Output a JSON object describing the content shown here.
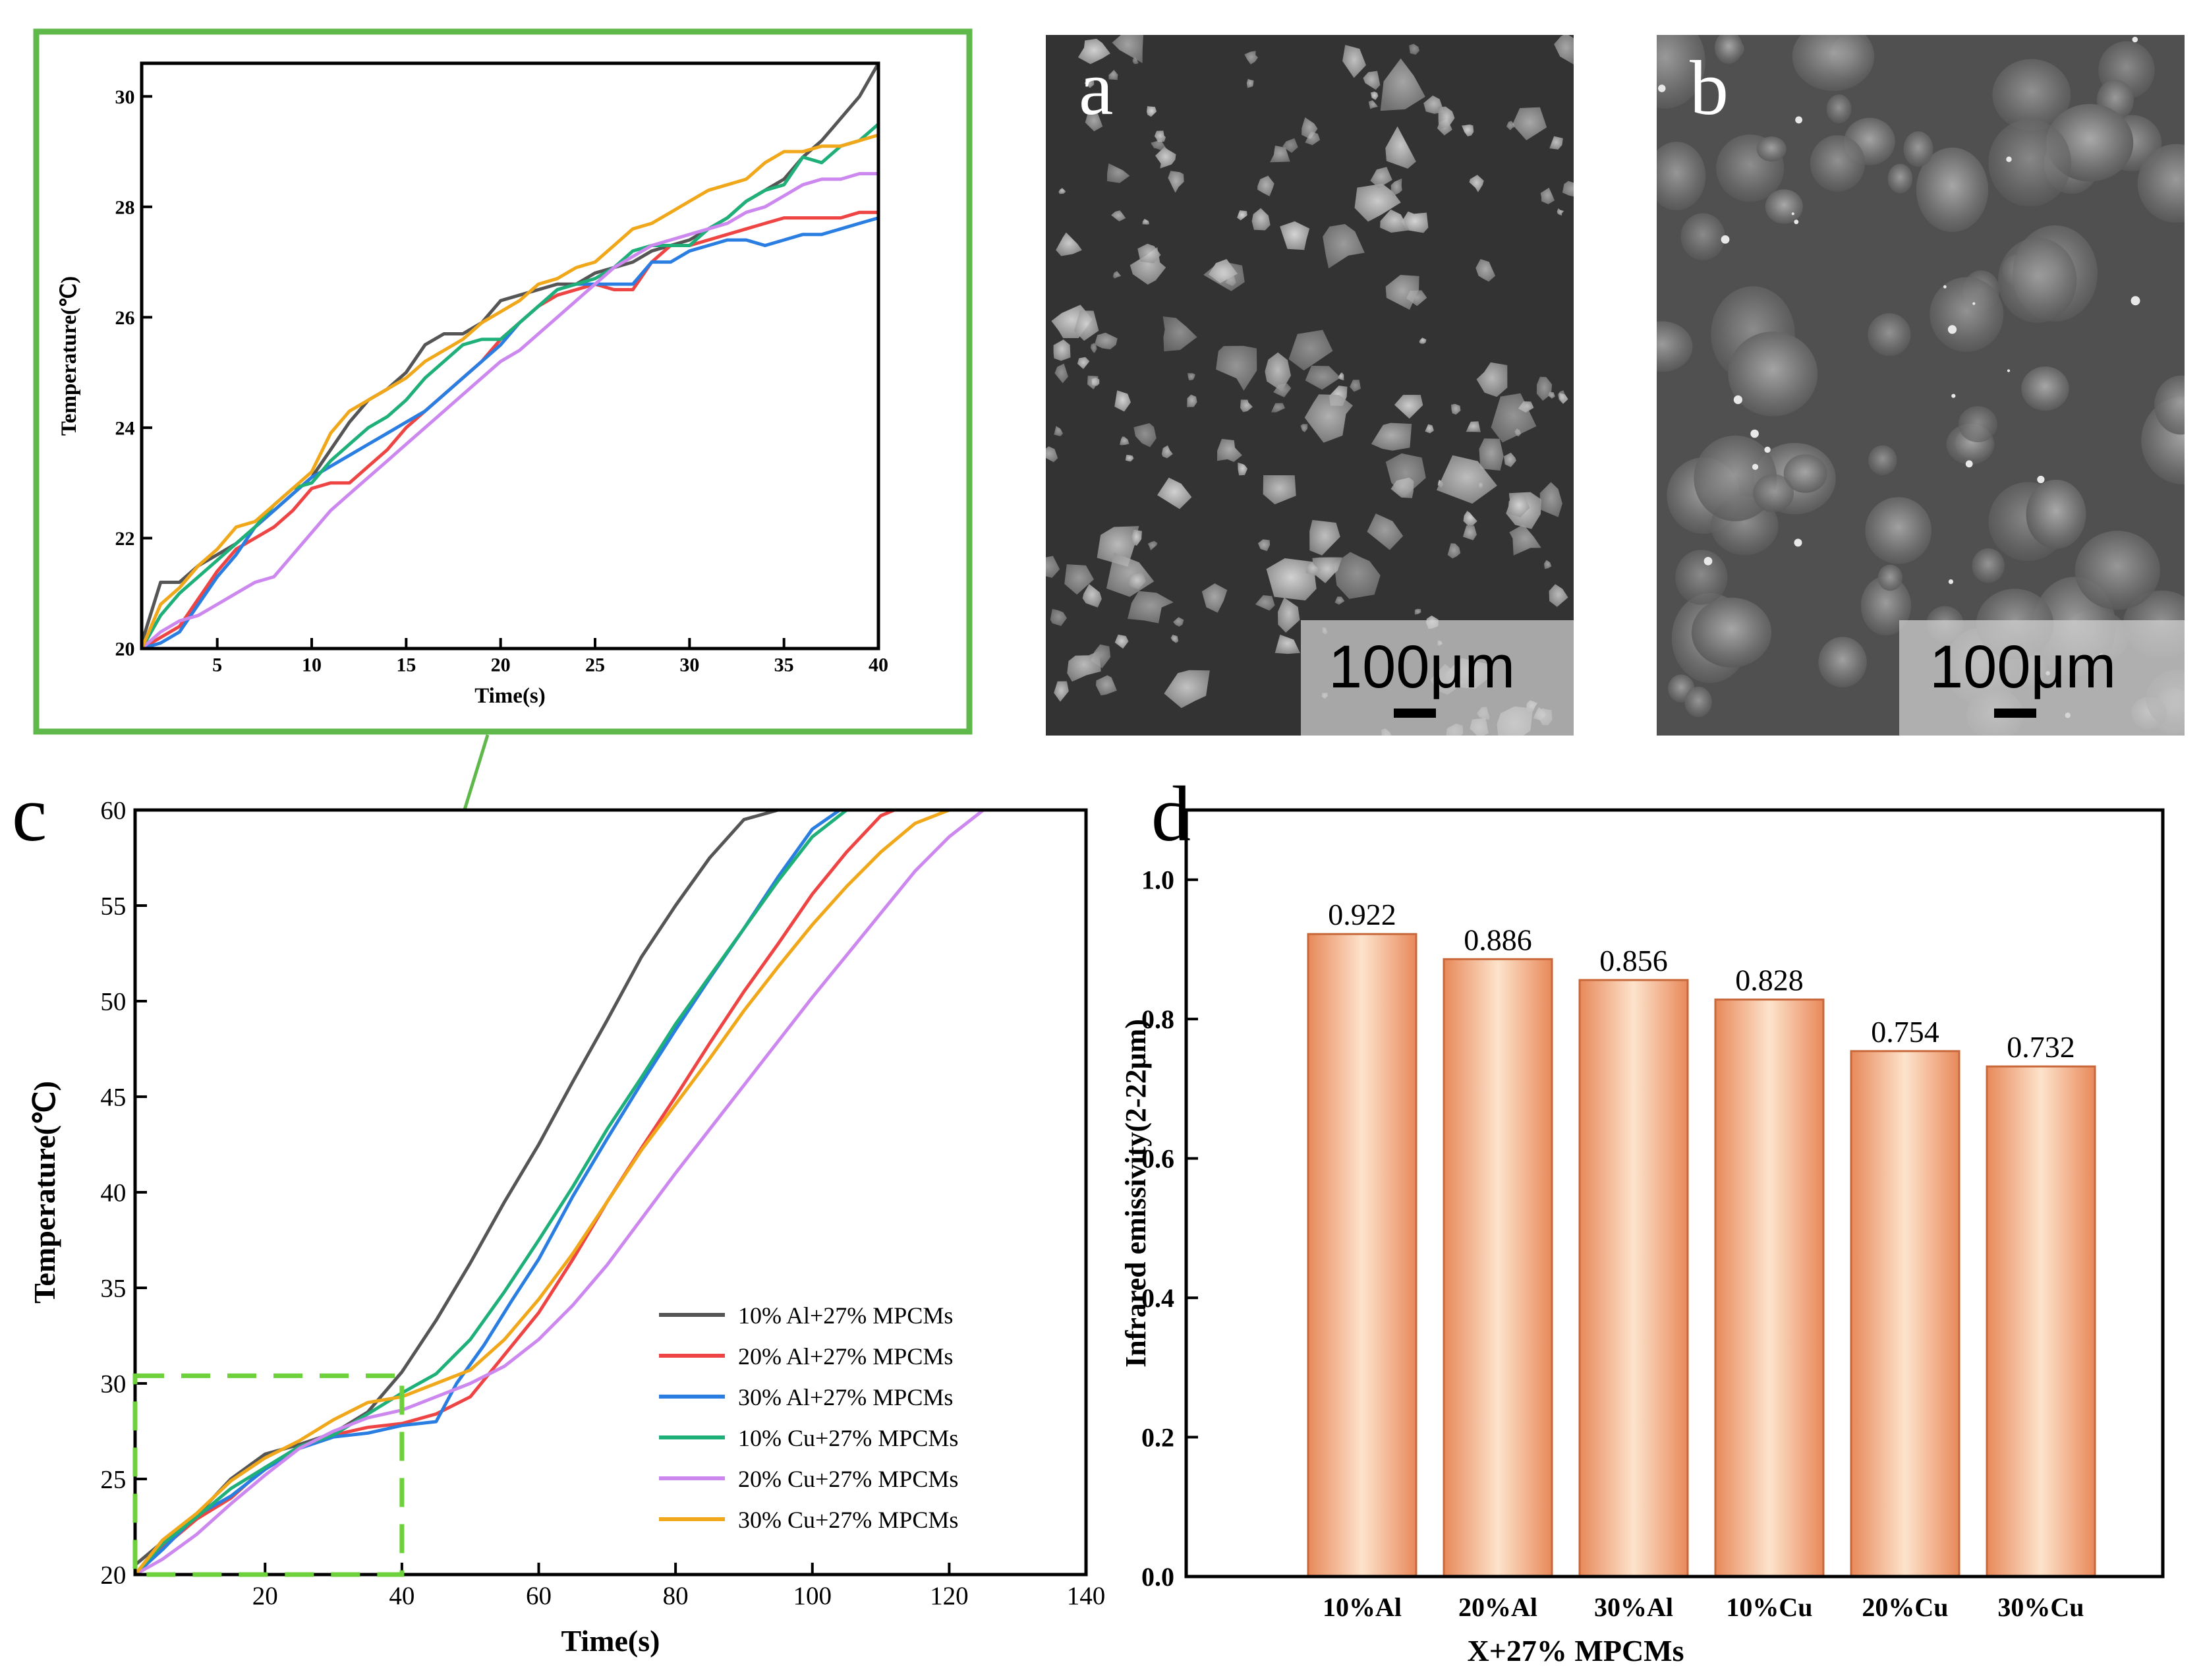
{
  "panels": {
    "a_label": "a",
    "b_label": "b",
    "c_label": "c",
    "d_label": "d",
    "scale_bar_text": "100μm"
  },
  "colors": {
    "zoom_box": "#5fb84a",
    "zoom_dash": "#6cd13a",
    "bar_fill_light": "#fde3cc",
    "bar_fill_dark": "#e8895a"
  },
  "chart_data": [
    {
      "id": "inset",
      "type": "line",
      "title": "",
      "xlabel": "Time(s)",
      "ylabel": "Temperature(℃)",
      "xlim": [
        1,
        40
      ],
      "ylim": [
        20,
        30.6
      ],
      "xticks": [
        5,
        10,
        15,
        20,
        25,
        30,
        35,
        40
      ],
      "yticks": [
        20,
        22,
        24,
        26,
        28,
        30
      ],
      "series": [
        {
          "name": "10% Al+27% MPCMs",
          "color": "#555555",
          "x": [
            1,
            2,
            3,
            4,
            5,
            6,
            7,
            8,
            9,
            10,
            11,
            12,
            13,
            14,
            15,
            16,
            17,
            18,
            19,
            20,
            21,
            22,
            23,
            24,
            25,
            26,
            27,
            28,
            29,
            30,
            31,
            32,
            33,
            34,
            35,
            36,
            37,
            38,
            39,
            40
          ],
          "y": [
            20.1,
            21.2,
            21.2,
            21.5,
            21.7,
            21.9,
            22.2,
            22.5,
            22.8,
            23.1,
            23.6,
            24.1,
            24.5,
            24.7,
            25.0,
            25.5,
            25.7,
            25.7,
            25.9,
            26.3,
            26.4,
            26.5,
            26.6,
            26.6,
            26.8,
            26.9,
            27.0,
            27.2,
            27.3,
            27.4,
            27.6,
            27.8,
            28.1,
            28.3,
            28.5,
            28.9,
            29.2,
            29.6,
            30.0,
            30.6
          ]
        },
        {
          "name": "20% Al+27% MPCMs",
          "color": "#ee4444",
          "x": [
            1,
            2,
            3,
            4,
            5,
            6,
            7,
            8,
            9,
            10,
            11,
            12,
            13,
            14,
            15,
            16,
            17,
            18,
            19,
            20,
            21,
            22,
            23,
            24,
            25,
            26,
            27,
            28,
            29,
            30,
            31,
            32,
            33,
            34,
            35,
            36,
            37,
            38,
            39,
            40
          ],
          "y": [
            20.0,
            20.2,
            20.4,
            20.9,
            21.4,
            21.8,
            22.0,
            22.2,
            22.5,
            22.9,
            23.0,
            23.0,
            23.3,
            23.6,
            24.0,
            24.3,
            24.6,
            24.9,
            25.2,
            25.6,
            25.9,
            26.2,
            26.4,
            26.5,
            26.6,
            26.5,
            26.5,
            27.0,
            27.3,
            27.3,
            27.4,
            27.5,
            27.6,
            27.7,
            27.8,
            27.8,
            27.8,
            27.8,
            27.9,
            27.9
          ]
        },
        {
          "name": "30% Al+27% MPCMs",
          "color": "#2a7de1",
          "x": [
            1,
            2,
            3,
            4,
            5,
            6,
            7,
            8,
            9,
            10,
            11,
            12,
            13,
            14,
            15,
            16,
            17,
            18,
            19,
            20,
            21,
            22,
            23,
            24,
            25,
            26,
            27,
            28,
            29,
            30,
            31,
            32,
            33,
            34,
            35,
            36,
            37,
            38,
            39,
            40
          ],
          "y": [
            20.0,
            20.1,
            20.3,
            20.8,
            21.3,
            21.7,
            22.2,
            22.5,
            22.8,
            23.1,
            23.3,
            23.5,
            23.7,
            23.9,
            24.1,
            24.3,
            24.6,
            24.9,
            25.2,
            25.5,
            25.9,
            26.2,
            26.5,
            26.6,
            26.6,
            26.6,
            26.6,
            27.0,
            27.0,
            27.2,
            27.3,
            27.4,
            27.4,
            27.3,
            27.4,
            27.5,
            27.5,
            27.6,
            27.7,
            27.8
          ]
        },
        {
          "name": "10% Cu+27% MPCMs",
          "color": "#1fb07a",
          "x": [
            1,
            2,
            3,
            4,
            5,
            6,
            7,
            8,
            9,
            10,
            11,
            12,
            13,
            14,
            15,
            16,
            17,
            18,
            19,
            20,
            21,
            22,
            23,
            24,
            25,
            26,
            27,
            28,
            29,
            30,
            31,
            32,
            33,
            34,
            35,
            36,
            37,
            38,
            39,
            40
          ],
          "y": [
            20.0,
            20.6,
            21.0,
            21.3,
            21.6,
            21.9,
            22.2,
            22.6,
            22.9,
            23.0,
            23.4,
            23.7,
            24.0,
            24.2,
            24.5,
            24.9,
            25.2,
            25.5,
            25.6,
            25.6,
            25.9,
            26.2,
            26.5,
            26.6,
            26.7,
            26.9,
            27.2,
            27.3,
            27.3,
            27.3,
            27.6,
            27.8,
            28.1,
            28.3,
            28.4,
            28.9,
            28.8,
            29.1,
            29.2,
            29.5
          ]
        },
        {
          "name": "20% Cu+27% MPCMs",
          "color": "#cc88ee",
          "x": [
            1,
            2,
            3,
            4,
            5,
            6,
            7,
            8,
            9,
            10,
            11,
            12,
            13,
            14,
            15,
            16,
            17,
            18,
            19,
            20,
            21,
            22,
            23,
            24,
            25,
            26,
            27,
            28,
            29,
            30,
            31,
            32,
            33,
            34,
            35,
            36,
            37,
            38,
            39,
            40
          ],
          "y": [
            20.0,
            20.3,
            20.5,
            20.6,
            20.8,
            21.0,
            21.2,
            21.3,
            21.7,
            22.1,
            22.5,
            22.8,
            23.1,
            23.4,
            23.7,
            24.0,
            24.3,
            24.6,
            24.9,
            25.2,
            25.4,
            25.7,
            26.0,
            26.3,
            26.6,
            26.9,
            27.1,
            27.3,
            27.4,
            27.5,
            27.6,
            27.7,
            27.9,
            28.0,
            28.2,
            28.4,
            28.5,
            28.5,
            28.6,
            28.6
          ]
        },
        {
          "name": "30% Cu+27% MPCMs",
          "color": "#f0a81a",
          "x": [
            1,
            2,
            3,
            4,
            5,
            6,
            7,
            8,
            9,
            10,
            11,
            12,
            13,
            14,
            15,
            16,
            17,
            18,
            19,
            20,
            21,
            22,
            23,
            24,
            25,
            26,
            27,
            28,
            29,
            30,
            31,
            32,
            33,
            34,
            35,
            36,
            37,
            38,
            39,
            40
          ],
          "y": [
            20.0,
            20.8,
            21.1,
            21.5,
            21.8,
            22.2,
            22.3,
            22.6,
            22.9,
            23.2,
            23.9,
            24.3,
            24.5,
            24.7,
            24.9,
            25.2,
            25.4,
            25.6,
            25.9,
            26.1,
            26.3,
            26.6,
            26.7,
            26.9,
            27.0,
            27.3,
            27.6,
            27.7,
            27.9,
            28.1,
            28.3,
            28.4,
            28.5,
            28.8,
            29.0,
            29.0,
            29.1,
            29.1,
            29.2,
            29.3
          ]
        }
      ]
    },
    {
      "id": "c",
      "type": "line",
      "title": "",
      "xlabel": "Time(s)",
      "ylabel": "Temperature(℃)",
      "xlim": [
        1,
        140
      ],
      "ylim": [
        20,
        60
      ],
      "xticks": [
        20,
        40,
        60,
        80,
        100,
        120,
        140
      ],
      "yticks": [
        20,
        25,
        30,
        35,
        40,
        45,
        50,
        55,
        60
      ],
      "legend_position": "bottom-right",
      "series": [
        {
          "name": "10% Al+27% MPCMs",
          "color": "#555555",
          "x": [
            1,
            5,
            10,
            15,
            20,
            25,
            30,
            35,
            40,
            45,
            50,
            55,
            60,
            65,
            70,
            75,
            80,
            85,
            90,
            95
          ],
          "y": [
            20.5,
            21.7,
            23.1,
            25.0,
            26.3,
            26.8,
            27.4,
            28.5,
            30.6,
            33.3,
            36.3,
            39.5,
            42.5,
            45.8,
            49.0,
            52.3,
            55.0,
            57.5,
            59.5,
            60.0
          ]
        },
        {
          "name": "20% Al+27% MPCMs",
          "color": "#ee4444",
          "x": [
            1,
            5,
            10,
            15,
            20,
            25,
            30,
            35,
            40,
            45,
            50,
            55,
            60,
            65,
            70,
            75,
            80,
            85,
            90,
            95,
            100,
            105,
            110,
            112
          ],
          "y": [
            20.0,
            21.4,
            22.9,
            24.0,
            25.6,
            26.6,
            27.3,
            27.7,
            27.9,
            28.4,
            29.3,
            31.5,
            33.7,
            36.5,
            39.5,
            42.3,
            45.0,
            47.8,
            50.5,
            53.0,
            55.6,
            57.8,
            59.7,
            60.0
          ]
        },
        {
          "name": "30% Al+27% MPCMs",
          "color": "#2a7de1",
          "x": [
            1,
            5,
            10,
            15,
            20,
            25,
            30,
            35,
            40,
            45,
            48,
            52,
            56,
            60,
            65,
            70,
            75,
            80,
            85,
            90,
            95,
            100,
            104
          ],
          "y": [
            20.0,
            21.3,
            23.1,
            24.1,
            25.5,
            26.6,
            27.2,
            27.4,
            27.8,
            28.0,
            30.0,
            32.0,
            34.3,
            36.5,
            39.8,
            42.8,
            45.7,
            48.5,
            51.2,
            53.8,
            56.5,
            59.0,
            60.0
          ]
        },
        {
          "name": "10% Cu+27% MPCMs",
          "color": "#1fb07a",
          "x": [
            1,
            5,
            10,
            15,
            20,
            25,
            30,
            35,
            40,
            45,
            50,
            55,
            60,
            65,
            70,
            75,
            80,
            85,
            90,
            95,
            100,
            105,
            108
          ],
          "y": [
            20.0,
            21.6,
            23.0,
            24.5,
            25.6,
            26.7,
            27.3,
            28.4,
            29.5,
            30.5,
            32.3,
            34.8,
            37.5,
            40.3,
            43.3,
            46.0,
            48.8,
            51.3,
            53.8,
            56.3,
            58.6,
            60.0,
            60.0
          ]
        },
        {
          "name": "20% Cu+27% MPCMs",
          "color": "#cc88ee",
          "x": [
            1,
            5,
            10,
            15,
            20,
            25,
            30,
            35,
            40,
            45,
            50,
            55,
            60,
            65,
            70,
            75,
            80,
            85,
            90,
            95,
            100,
            105,
            110,
            115,
            120,
            125,
            127
          ],
          "y": [
            20.0,
            20.8,
            22.1,
            23.7,
            25.2,
            26.6,
            27.5,
            28.2,
            28.6,
            29.3,
            30.0,
            30.9,
            32.3,
            34.1,
            36.2,
            38.6,
            41.0,
            43.3,
            45.6,
            47.9,
            50.2,
            52.4,
            54.6,
            56.8,
            58.6,
            60.0,
            60.0
          ]
        },
        {
          "name": "30% Cu+27% MPCMs",
          "color": "#f0a81a",
          "x": [
            1,
            5,
            10,
            15,
            20,
            25,
            30,
            35,
            40,
            45,
            50,
            55,
            60,
            65,
            70,
            75,
            80,
            85,
            90,
            95,
            100,
            105,
            110,
            115,
            120
          ],
          "y": [
            20.0,
            21.8,
            23.2,
            24.9,
            26.1,
            27.0,
            28.1,
            29.0,
            29.3,
            30.0,
            30.7,
            32.3,
            34.4,
            36.8,
            39.5,
            42.2,
            44.6,
            47.0,
            49.5,
            51.8,
            54.0,
            56.0,
            57.8,
            59.3,
            60.0
          ]
        }
      ],
      "zoom_region": {
        "x": [
          1,
          40
        ],
        "y": [
          20,
          30.4
        ]
      }
    },
    {
      "id": "d",
      "type": "bar",
      "title": "",
      "xlabel": "X+27% MPCMs",
      "ylabel": "Infrared emissivity(2-22μm)",
      "ylim": [
        0,
        1.1
      ],
      "yticks": [
        "0.0",
        "0.2",
        "0.4",
        "0.6",
        "0.8",
        "1.0"
      ],
      "categories": [
        "10%Al",
        "20%Al",
        "30%Al",
        "10%Cu",
        "20%Cu",
        "30%Cu"
      ],
      "values": [
        0.922,
        0.886,
        0.856,
        0.828,
        0.754,
        0.732
      ],
      "value_labels": [
        "0.922",
        "0.886",
        "0.856",
        "0.828",
        "0.754",
        "0.732"
      ]
    }
  ]
}
